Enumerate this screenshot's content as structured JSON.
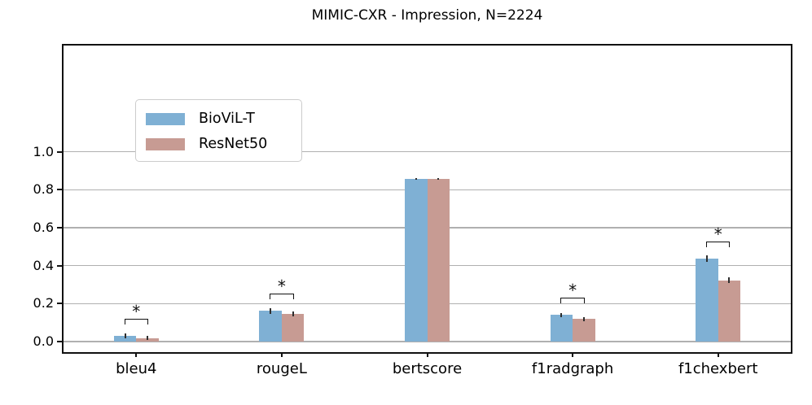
{
  "title": "MIMIC-CXR - Impression, N=2224",
  "legend": {
    "items": [
      {
        "label": "BioViL-T",
        "color": "#7fb0d4"
      },
      {
        "label": "ResNet50",
        "color": "#c79b93"
      }
    ]
  },
  "chart_data": {
    "type": "bar",
    "title": "MIMIC-CXR - Impression, N=2224",
    "categories": [
      "bleu4",
      "rougeL",
      "bertscore",
      "f1radgraph",
      "f1chexbert"
    ],
    "series": [
      {
        "name": "BioViL-T",
        "color": "#7fb0d4",
        "values": [
          0.03,
          0.162,
          0.858,
          0.14,
          0.438
        ],
        "errors": [
          0.012,
          0.015,
          0.004,
          0.012,
          0.018
        ]
      },
      {
        "name": "ResNet50",
        "color": "#c79b93",
        "values": [
          0.018,
          0.145,
          0.856,
          0.119,
          0.323
        ],
        "errors": [
          0.01,
          0.012,
          0.004,
          0.01,
          0.016
        ]
      }
    ],
    "significance": {
      "marker": "*",
      "flags": [
        true,
        true,
        false,
        true,
        true
      ]
    },
    "xlabel": "",
    "ylabel": "",
    "yticks": [
      0.0,
      0.2,
      0.4,
      0.6,
      0.8,
      1.0
    ],
    "ytick_labels": [
      "0.0",
      "0.2",
      "0.4",
      "0.6",
      "0.8",
      "1.0"
    ],
    "ylim": [
      -0.064,
      1.56
    ],
    "grid": "horizontal",
    "gridline_color": "#b0b0b0",
    "error_bar_color": "#2e2e2e",
    "legend_position": "upper left"
  }
}
